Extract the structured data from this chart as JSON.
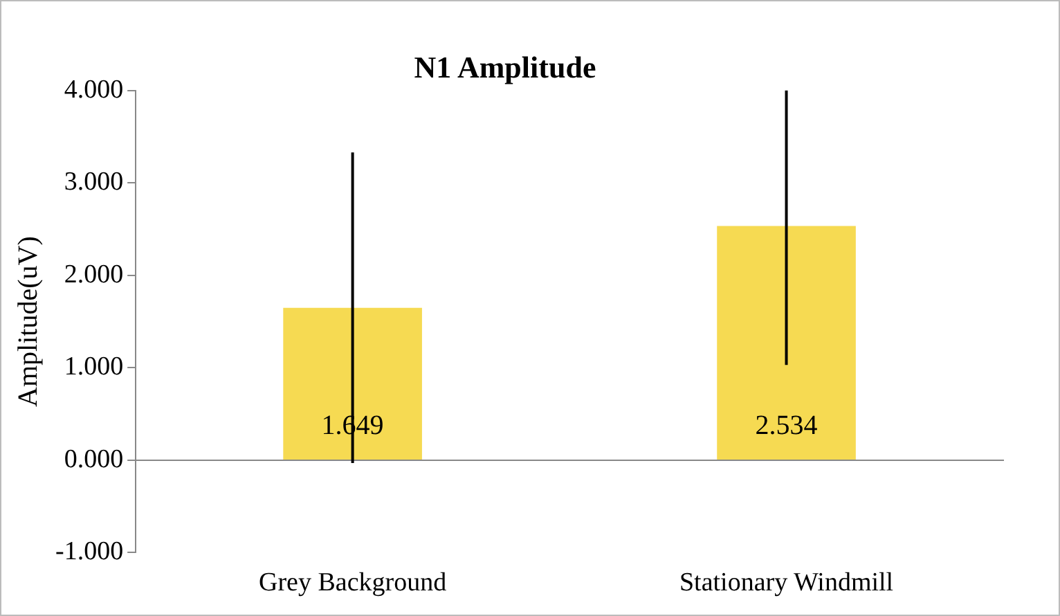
{
  "chart_data": {
    "type": "bar",
    "title": "N1 Amplitude",
    "ylabel": "Amplitude(uV)",
    "categories": [
      "Grey Background",
      "Stationary Windmill"
    ],
    "values": [
      1.649,
      2.534
    ],
    "color": "#f6da52",
    "errors": [
      [
        -0.03,
        3.33
      ],
      [
        1.03,
        4.0
      ]
    ],
    "ylim": [
      -1,
      4
    ],
    "yticks": [
      {
        "value": -1,
        "label": "-1.000"
      },
      {
        "value": 0,
        "label": "0.000"
      },
      {
        "value": 1,
        "label": "1.000"
      },
      {
        "value": 2,
        "label": "2.000"
      },
      {
        "value": 3,
        "label": "3.000"
      },
      {
        "value": 4,
        "label": "4.000"
      }
    ],
    "data_labels": true,
    "legend": false
  }
}
